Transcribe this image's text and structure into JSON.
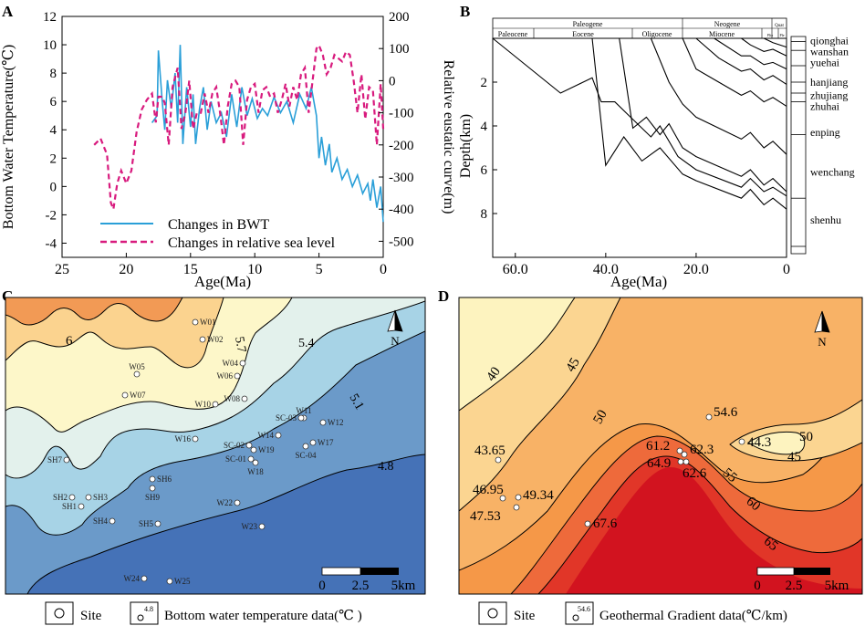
{
  "chart_data": [
    {
      "panel": "A",
      "type": "line",
      "xlabel": "Age(Ma)",
      "ylabel": "Bottom Water Temperature(℃)",
      "y2label": "Relative eustatic curve(m)",
      "xlim": [
        25,
        0
      ],
      "ylim": [
        -5,
        12
      ],
      "y2lim": [
        -550,
        200
      ],
      "xticks": [
        "25",
        "20",
        "15",
        "10",
        "5",
        "0"
      ],
      "yticks": [
        "-4",
        "-2",
        "0",
        "2",
        "4",
        "6",
        "8",
        "10",
        "12"
      ],
      "y2ticks": [
        "200",
        "100",
        "0",
        "-100",
        "-200",
        "-300",
        "-400",
        "-500"
      ],
      "legend": [
        "Changes in BWT",
        "Changes in relative sea level"
      ],
      "series": [
        {
          "name": "Changes in BWT",
          "color": "#2a9fd8",
          "axis": "left",
          "x": [
            18.0,
            17.6,
            17.5,
            17.2,
            17.0,
            16.8,
            16.5,
            16.2,
            16.0,
            15.8,
            15.6,
            15.3,
            15.0,
            14.8,
            14.6,
            14.3,
            14.0,
            13.7,
            13.4,
            13.0,
            12.6,
            12.2,
            11.8,
            11.4,
            11.0,
            10.6,
            10.2,
            9.8,
            9.4,
            9.0,
            8.5,
            8.0,
            7.5,
            7.0,
            6.5,
            6.0,
            5.6,
            5.2,
            5.0,
            4.8,
            4.5,
            4.2,
            4.0,
            3.6,
            3.2,
            2.8,
            2.4,
            2.0,
            1.6,
            1.2,
            1.0,
            0.8,
            0.5,
            0.2,
            0.0
          ],
          "y": [
            4.5,
            5.0,
            9.6,
            6.0,
            4.0,
            7.5,
            5.5,
            8.0,
            4.5,
            10.0,
            3.0,
            7.0,
            4.2,
            6.5,
            3.0,
            5.5,
            7.0,
            4.0,
            6.0,
            4.5,
            5.2,
            3.5,
            6.5,
            4.2,
            7.0,
            5.0,
            6.2,
            4.8,
            5.5,
            5.0,
            6.3,
            5.2,
            6.0,
            4.5,
            6.5,
            5.5,
            7.0,
            5.0,
            2.0,
            3.5,
            1.5,
            3.0,
            1.0,
            2.0,
            0.5,
            1.2,
            0.0,
            0.8,
            -0.5,
            0.2,
            -1.0,
            0.5,
            -1.5,
            0.0,
            -2.5
          ]
        },
        {
          "name": "Changes in relative sea level",
          "color": "#d81b7e",
          "axis": "right",
          "x": [
            22.5,
            22.0,
            21.5,
            21.2,
            21.0,
            20.7,
            20.4,
            20.0,
            19.6,
            19.2,
            18.8,
            18.4,
            18.0,
            17.7,
            17.5,
            17.2,
            17.0,
            16.7,
            16.4,
            16.0,
            15.7,
            15.4,
            15.1,
            14.8,
            14.5,
            14.2,
            13.9,
            13.6,
            13.3,
            13.0,
            12.7,
            12.4,
            12.1,
            11.8,
            11.5,
            11.2,
            10.9,
            10.6,
            10.3,
            10.0,
            9.7,
            9.4,
            9.1,
            8.8,
            8.5,
            8.2,
            7.9,
            7.6,
            7.3,
            7.0,
            6.7,
            6.4,
            6.1,
            5.8,
            5.5,
            5.2,
            5.0,
            4.7,
            4.4,
            4.1,
            3.8,
            3.5,
            3.2,
            2.9,
            2.6,
            2.3,
            2.0,
            1.7,
            1.4,
            1.1,
            0.8,
            0.5,
            0.2,
            0.0
          ],
          "y": [
            -200,
            -180,
            -230,
            -380,
            -400,
            -320,
            -280,
            -320,
            -280,
            -160,
            -90,
            -60,
            -40,
            -130,
            -50,
            -50,
            -70,
            -200,
            -20,
            40,
            -150,
            -100,
            0,
            -150,
            -100,
            -100,
            -40,
            -100,
            -40,
            -20,
            -100,
            -200,
            -80,
            -10,
            0,
            -20,
            -200,
            -60,
            -20,
            -10,
            -100,
            -30,
            -20,
            -50,
            -40,
            -100,
            -60,
            -10,
            -80,
            -20,
            -60,
            20,
            40,
            -100,
            0,
            100,
            110,
            80,
            20,
            40,
            80,
            70,
            60,
            90,
            80,
            0,
            -100,
            20,
            -120,
            -20,
            -30,
            -200,
            -10,
            -150
          ]
        }
      ]
    },
    {
      "panel": "B",
      "type": "line",
      "title_periods": [
        "Paleogene",
        "Neogene",
        "Quat"
      ],
      "title_epochs": [
        "Paleocene",
        "Eocene",
        "Oligocene",
        "Miocene",
        "Plio",
        "Ple"
      ],
      "xlabel": "Age(Ma)",
      "ylabel": "Depth(km)",
      "xlim": [
        65,
        0
      ],
      "ylim": [
        0,
        10
      ],
      "xticks": [
        "60.0",
        "40.0",
        "20.0",
        "0"
      ],
      "yticks": [
        "2",
        "4",
        "6",
        "8"
      ],
      "formations": [
        "qionghai",
        "wanshan",
        "yuehai",
        "hanjiang",
        "zhujiang",
        "zhuhai",
        "enping",
        "wenchang",
        "shenhu"
      ],
      "burial_curves": [
        {
          "x": [
            65,
            50,
            43,
            41,
            38,
            35,
            30,
            28,
            24,
            20,
            10,
            8,
            5,
            3,
            0
          ],
          "y": [
            0,
            2.5,
            1.8,
            2.9,
            2.9,
            3.5,
            4.5,
            4.0,
            5.4,
            6.0,
            6.8,
            6.4,
            7.0,
            6.8,
            7.2
          ]
        },
        {
          "x": [
            43,
            40,
            36,
            32,
            28,
            23,
            20,
            10,
            8,
            5,
            3,
            0
          ],
          "y": [
            0,
            5.8,
            4.5,
            5.6,
            5.0,
            6.2,
            6.5,
            7.3,
            6.9,
            7.6,
            7.3,
            7.8
          ]
        },
        {
          "x": [
            37,
            34,
            31,
            28,
            26,
            23,
            20,
            10,
            8,
            5,
            3,
            0
          ],
          "y": [
            0,
            4.1,
            3.6,
            4.4,
            3.9,
            5.0,
            5.4,
            6.3,
            6.0,
            6.7,
            6.4,
            7.0
          ]
        },
        {
          "x": [
            30,
            26,
            23,
            20,
            10,
            8,
            5,
            3,
            0
          ],
          "y": [
            0,
            2.0,
            3.0,
            3.6,
            4.6,
            4.3,
            5.0,
            4.7,
            5.3
          ]
        },
        {
          "x": [
            23,
            20,
            15,
            10,
            8,
            5,
            3,
            0
          ],
          "y": [
            0,
            1.4,
            2.0,
            2.6,
            2.4,
            2.9,
            2.7,
            3.1
          ]
        },
        {
          "x": [
            20,
            15,
            10,
            8,
            5,
            3,
            0
          ],
          "y": [
            0,
            0.9,
            1.5,
            1.4,
            1.9,
            1.7,
            2.1
          ]
        },
        {
          "x": [
            16,
            10,
            8,
            5,
            3,
            0
          ],
          "y": [
            0,
            0.8,
            0.8,
            1.2,
            1.1,
            1.4
          ]
        },
        {
          "x": [
            10,
            8,
            5,
            3,
            0
          ],
          "y": [
            0,
            0.3,
            0.6,
            0.5,
            0.8
          ]
        },
        {
          "x": [
            5,
            3,
            0
          ],
          "y": [
            0,
            0.2,
            0.4
          ]
        }
      ]
    },
    {
      "panel": "C",
      "type": "map",
      "legend_site": "Site",
      "legend_value_sample": "4.8",
      "legend_data": "Bottom water temperature data(℃ )",
      "scale_labels": [
        "0",
        "2.5",
        "5km"
      ],
      "north": "N",
      "contour_labels": [
        "6",
        "5.7",
        "5.4",
        "5.1",
        "4.8"
      ],
      "sites": [
        "W01",
        "W02",
        "W04",
        "W05",
        "W06",
        "W07",
        "W08",
        "W10",
        "W11",
        "SC-03",
        "W12",
        "W14",
        "W16",
        "W17",
        "SC-02",
        "W19",
        "SC-01",
        "SC-04",
        "W18",
        "SH7",
        "SH6",
        "SH9",
        "SH2",
        "SH3",
        "SH1",
        "W22",
        "SH4",
        "SH5",
        "W23",
        "W24",
        "W25"
      ]
    },
    {
      "panel": "D",
      "type": "map",
      "legend_site": "Site",
      "legend_value_sample": "54.6",
      "legend_data": "Geothermal Gradient data(℃/km)",
      "scale_labels": [
        "0",
        "2.5",
        "5km"
      ],
      "north": "N",
      "contour_labels": [
        "40",
        "45",
        "50",
        "55",
        "60",
        "65",
        "50",
        "45"
      ],
      "sites": [
        "43.65",
        "46.95",
        "49.34",
        "47.53",
        "67.6",
        "61.2",
        "62.3",
        "64.9",
        "62.6",
        "54.6",
        "44.3"
      ]
    }
  ],
  "panel_letters": [
    "A",
    "B",
    "C",
    "D"
  ]
}
